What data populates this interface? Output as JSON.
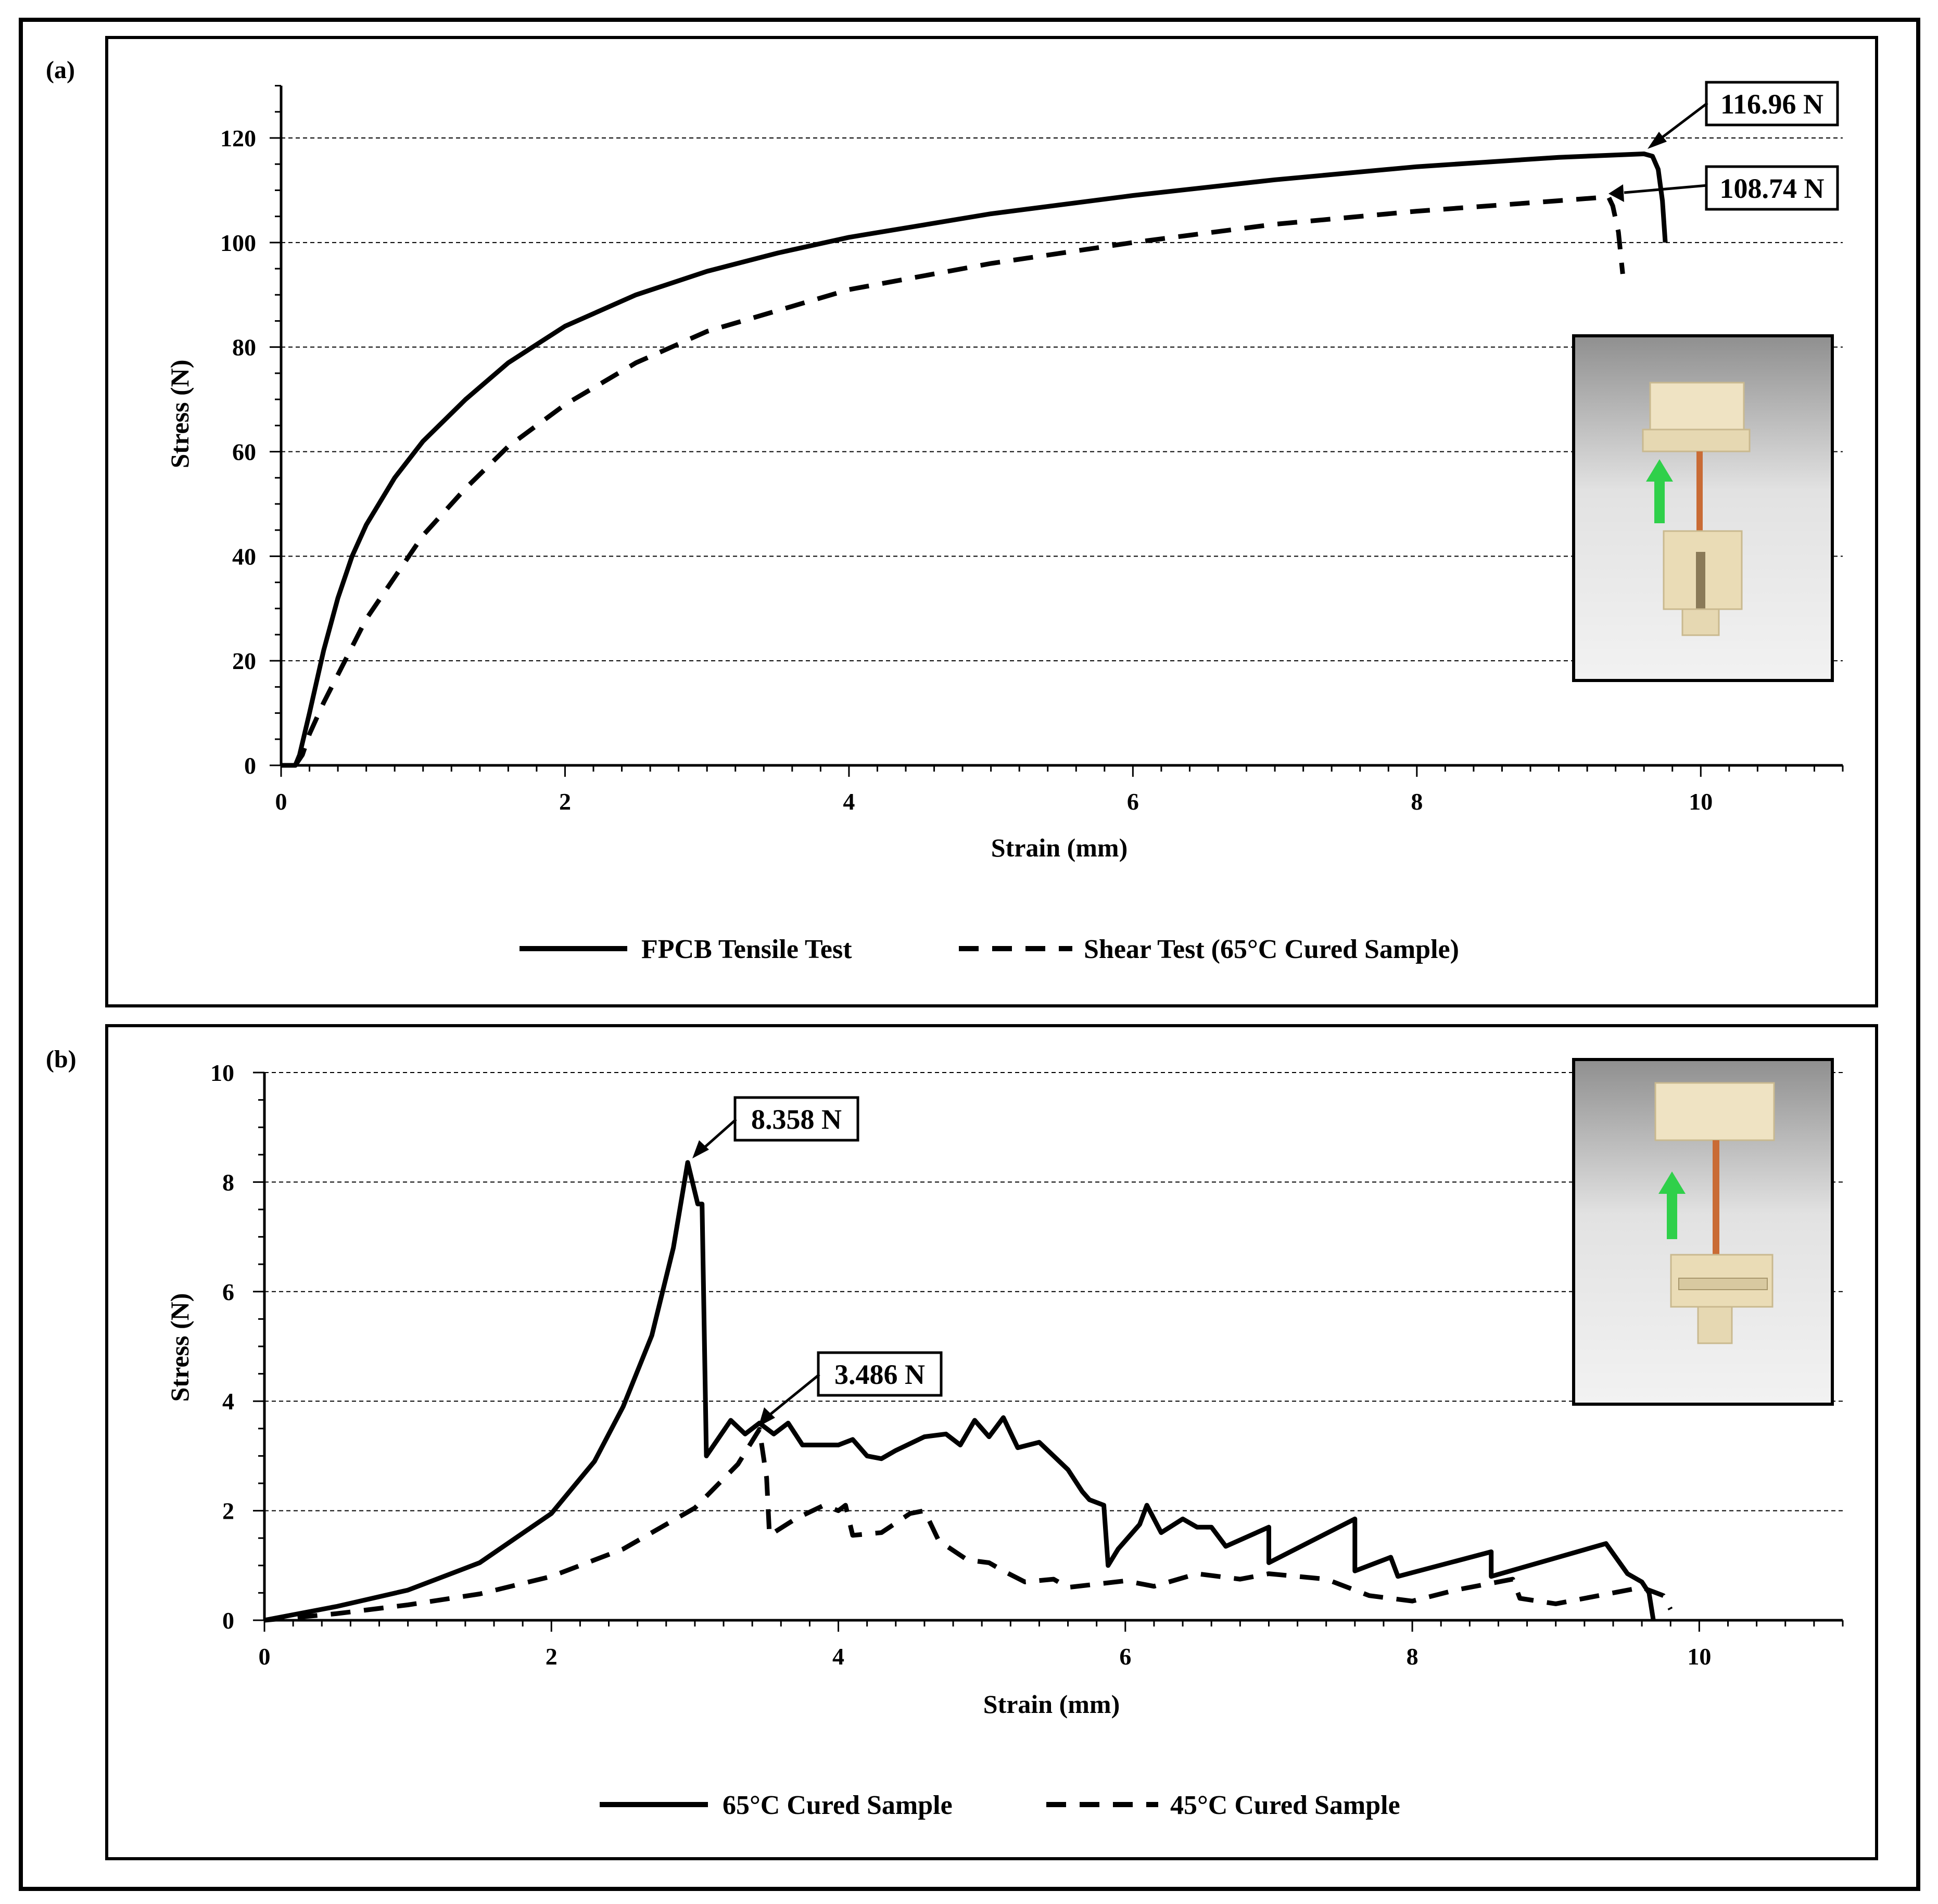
{
  "chart_data": [
    {
      "panel_label": "(a)",
      "type": "line",
      "xlabel": "Strain (mm)",
      "ylabel": "Stress (N)",
      "xlim": [
        0,
        11
      ],
      "ylim": [
        0,
        130
      ],
      "xticks": [
        0,
        2,
        4,
        6,
        8,
        10
      ],
      "yticks": [
        0,
        20,
        40,
        60,
        80,
        100,
        120
      ],
      "grid": "horizontal dashed",
      "legend_position": "bottom",
      "annotations": [
        "116.96 N",
        "108.74 N"
      ],
      "series": [
        {
          "name": "FPCB Tensile Test",
          "style": "solid",
          "points": [
            [
              0,
              0
            ],
            [
              0.1,
              0
            ],
            [
              0.13,
              2
            ],
            [
              0.2,
              10
            ],
            [
              0.3,
              22
            ],
            [
              0.4,
              32
            ],
            [
              0.5,
              40
            ],
            [
              0.6,
              46
            ],
            [
              0.8,
              55
            ],
            [
              1.0,
              62
            ],
            [
              1.3,
              70
            ],
            [
              1.6,
              77
            ],
            [
              2.0,
              84
            ],
            [
              2.5,
              90
            ],
            [
              3.0,
              94.5
            ],
            [
              3.5,
              98
            ],
            [
              4.0,
              101
            ],
            [
              5.0,
              105.5
            ],
            [
              6.0,
              109
            ],
            [
              7.0,
              112
            ],
            [
              8.0,
              114.5
            ],
            [
              9.0,
              116.3
            ],
            [
              9.6,
              116.96
            ],
            [
              9.66,
              116.5
            ],
            [
              9.7,
              114
            ],
            [
              9.73,
              108
            ],
            [
              9.75,
              100
            ]
          ]
        },
        {
          "name": "Shear Test (65°C Cured Sample)",
          "style": "dashed",
          "points": [
            [
              0.1,
              0
            ],
            [
              0.15,
              2
            ],
            [
              0.2,
              6
            ],
            [
              0.3,
              12
            ],
            [
              0.45,
              20
            ],
            [
              0.6,
              28
            ],
            [
              0.8,
              36
            ],
            [
              1.0,
              44
            ],
            [
              1.3,
              53
            ],
            [
              1.6,
              61
            ],
            [
              2.0,
              69
            ],
            [
              2.5,
              77
            ],
            [
              3.0,
              83
            ],
            [
              3.5,
              87
            ],
            [
              4.0,
              91
            ],
            [
              5.0,
              96
            ],
            [
              6.0,
              100
            ],
            [
              7.0,
              103.5
            ],
            [
              8.0,
              106
            ],
            [
              9.0,
              108
            ],
            [
              9.35,
              108.74
            ],
            [
              9.38,
              107
            ],
            [
              9.42,
              102
            ],
            [
              9.45,
              94
            ]
          ]
        }
      ]
    },
    {
      "panel_label": "(b)",
      "type": "line",
      "xlabel": "Strain (mm)",
      "ylabel": "Stress (N)",
      "xlim": [
        0,
        11
      ],
      "ylim": [
        0,
        10
      ],
      "xticks": [
        0,
        2,
        4,
        6,
        8,
        10
      ],
      "yticks": [
        0,
        2,
        4,
        6,
        8,
        10
      ],
      "grid": "horizontal dashed",
      "legend_position": "bottom",
      "annotations": [
        "8.358 N",
        "3.486 N"
      ],
      "series": [
        {
          "name": "65°C Cured Sample",
          "style": "solid",
          "points": [
            [
              0,
              0
            ],
            [
              0.5,
              0.25
            ],
            [
              1.0,
              0.55
            ],
            [
              1.5,
              1.05
            ],
            [
              2.0,
              1.95
            ],
            [
              2.3,
              2.9
            ],
            [
              2.5,
              3.9
            ],
            [
              2.7,
              5.2
            ],
            [
              2.85,
              6.8
            ],
            [
              2.95,
              8.358
            ],
            [
              3.02,
              7.6
            ],
            [
              3.05,
              7.6
            ],
            [
              3.08,
              3.0
            ],
            [
              3.25,
              3.65
            ],
            [
              3.35,
              3.4
            ],
            [
              3.45,
              3.6
            ],
            [
              3.55,
              3.4
            ],
            [
              3.65,
              3.6
            ],
            [
              3.75,
              3.2
            ],
            [
              4.0,
              3.2
            ],
            [
              4.1,
              3.3
            ],
            [
              4.2,
              3.0
            ],
            [
              4.3,
              2.95
            ],
            [
              4.4,
              3.1
            ],
            [
              4.6,
              3.35
            ],
            [
              4.75,
              3.4
            ],
            [
              4.85,
              3.2
            ],
            [
              4.95,
              3.65
            ],
            [
              5.05,
              3.35
            ],
            [
              5.15,
              3.7
            ],
            [
              5.25,
              3.15
            ],
            [
              5.4,
              3.25
            ],
            [
              5.5,
              3.0
            ],
            [
              5.6,
              2.75
            ],
            [
              5.7,
              2.35
            ],
            [
              5.75,
              2.2
            ],
            [
              5.85,
              2.1
            ],
            [
              5.88,
              1.0
            ],
            [
              5.95,
              1.3
            ],
            [
              6.1,
              1.75
            ],
            [
              6.15,
              2.1
            ],
            [
              6.25,
              1.6
            ],
            [
              6.4,
              1.85
            ],
            [
              6.5,
              1.7
            ],
            [
              6.6,
              1.7
            ],
            [
              6.7,
              1.35
            ],
            [
              7.0,
              1.7
            ],
            [
              7.0,
              1.05
            ],
            [
              7.6,
              1.85
            ],
            [
              7.6,
              0.9
            ],
            [
              7.85,
              1.15
            ],
            [
              7.9,
              0.8
            ],
            [
              8.55,
              1.25
            ],
            [
              8.55,
              0.8
            ],
            [
              9.35,
              1.4
            ],
            [
              9.5,
              0.85
            ],
            [
              9.6,
              0.7
            ],
            [
              9.65,
              0.5
            ],
            [
              9.68,
              0.0
            ]
          ]
        },
        {
          "name": "45°C Cured Sample",
          "style": "dashed",
          "points": [
            [
              0,
              0
            ],
            [
              0.5,
              0.12
            ],
            [
              1.0,
              0.28
            ],
            [
              1.5,
              0.48
            ],
            [
              2.0,
              0.8
            ],
            [
              2.5,
              1.3
            ],
            [
              3.0,
              2.05
            ],
            [
              3.3,
              2.85
            ],
            [
              3.45,
              3.486
            ],
            [
              3.5,
              2.6
            ],
            [
              3.52,
              1.55
            ],
            [
              3.7,
              1.85
            ],
            [
              3.9,
              2.1
            ],
            [
              4.0,
              2.0
            ],
            [
              4.05,
              2.1
            ],
            [
              4.1,
              1.55
            ],
            [
              4.3,
              1.6
            ],
            [
              4.5,
              1.95
            ],
            [
              4.6,
              2.0
            ],
            [
              4.7,
              1.45
            ],
            [
              4.9,
              1.1
            ],
            [
              5.05,
              1.05
            ],
            [
              5.15,
              0.9
            ],
            [
              5.3,
              0.7
            ],
            [
              5.5,
              0.75
            ],
            [
              5.6,
              0.6
            ],
            [
              6.0,
              0.72
            ],
            [
              6.2,
              0.62
            ],
            [
              6.5,
              0.85
            ],
            [
              6.8,
              0.75
            ],
            [
              7.0,
              0.85
            ],
            [
              7.4,
              0.75
            ],
            [
              7.7,
              0.45
            ],
            [
              8.0,
              0.35
            ],
            [
              8.3,
              0.55
            ],
            [
              8.7,
              0.75
            ],
            [
              8.75,
              0.4
            ],
            [
              9.0,
              0.3
            ],
            [
              9.2,
              0.4
            ],
            [
              9.6,
              0.6
            ],
            [
              9.75,
              0.45
            ],
            [
              9.8,
              0.2
            ]
          ]
        }
      ]
    }
  ],
  "legends": [
    [
      "FPCB Tensile Test",
      "Shear Test (65°C Cured Sample)"
    ],
    [
      "65°C Cured Sample",
      "45°C Cured Sample"
    ]
  ]
}
